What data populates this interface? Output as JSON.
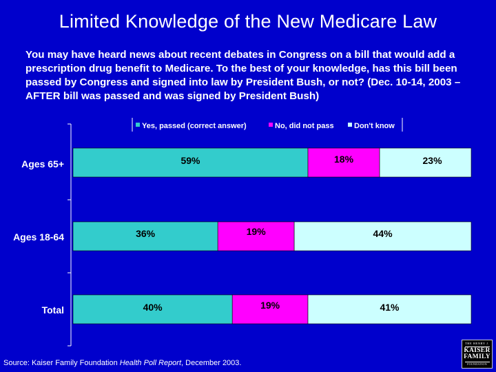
{
  "slide": {
    "title": "Limited Knowledge of the New Medicare Law",
    "question": "You may have heard news about recent debates in Congress on a bill that would add a prescription drug benefit to Medicare.  To the best of your knowledge, has this bill been passed by Congress and signed into law by President Bush, or not?  (Dec. 10-14, 2003 – AFTER bill was passed and was signed by President Bush)",
    "source_prefix": "Source: Kaiser Family Foundation ",
    "source_italic": "Health Poll Report",
    "source_suffix": ", December 2003."
  },
  "logo": {
    "line1": "THE HENRY J.",
    "line2": "KAISER",
    "line3": "FAMILY",
    "line4": "FOUNDATION"
  },
  "colors": {
    "background": "#0000cc",
    "yes": "#33cccc",
    "no": "#ff00ff",
    "dontknow": "#ccffff",
    "text": "#ffffff",
    "label_text": "#000000"
  },
  "chart_data": {
    "type": "bar",
    "orientation": "horizontal",
    "stacked": "100%",
    "categories": [
      "Ages 65+",
      "Ages 18-64",
      "Total"
    ],
    "series": [
      {
        "name": "Yes, passed (correct answer)",
        "values": [
          59,
          36,
          40
        ],
        "labels": [
          "59%",
          "36%",
          "40%"
        ]
      },
      {
        "name": "No, did not pass",
        "values": [
          18,
          19,
          19
        ],
        "labels": [
          "18%",
          "19%",
          "19%"
        ]
      },
      {
        "name": "Don't know",
        "values": [
          23,
          44,
          41
        ],
        "labels": [
          "23%",
          "44%",
          "41%"
        ]
      }
    ],
    "xlim": [
      0,
      100
    ],
    "legend_position": "top"
  }
}
